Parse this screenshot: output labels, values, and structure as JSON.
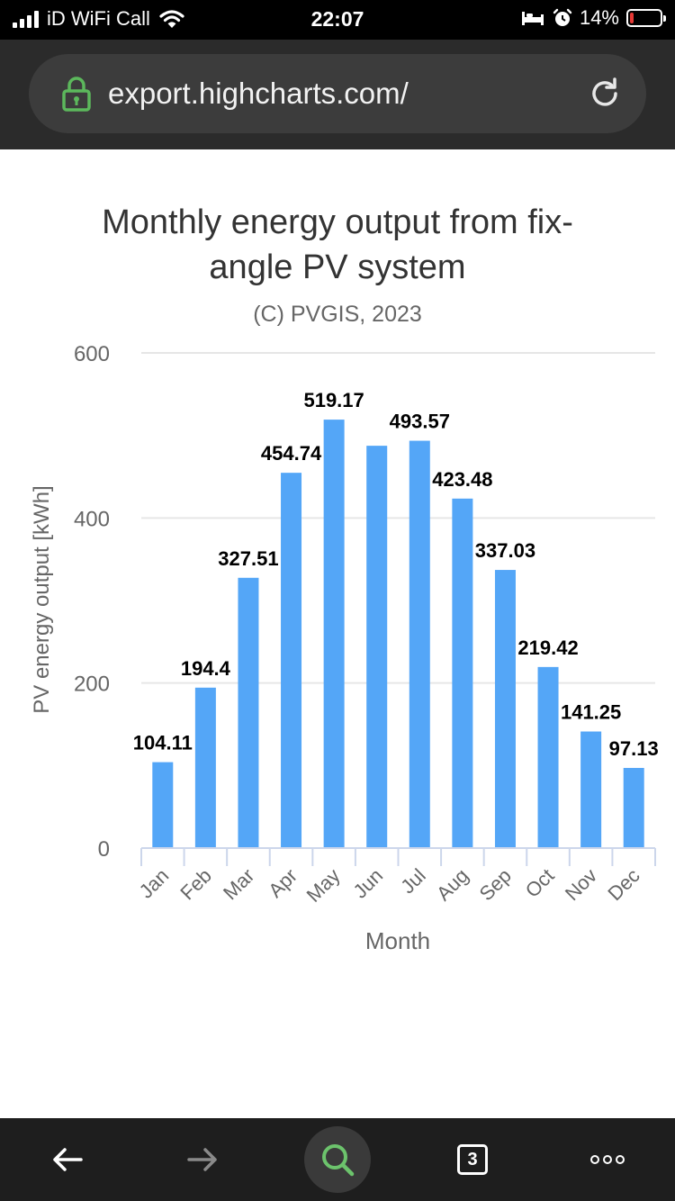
{
  "status_bar": {
    "carrier": "iD WiFi Call",
    "time": "22:07",
    "battery_percent": "14%",
    "battery_level": 0.14,
    "icons": [
      "signal-icon",
      "wifi-icon",
      "bed-icon",
      "alarm-icon",
      "battery-icon"
    ]
  },
  "browser": {
    "url": "export.highcharts.com/",
    "icons": [
      "lock-icon",
      "reload-icon"
    ]
  },
  "toolbar": {
    "tab_count": "3",
    "icons": [
      "back-arrow-icon",
      "forward-arrow-icon",
      "search-icon",
      "tabs-icon",
      "more-icon"
    ]
  },
  "colors": {
    "bar": "#54a6f7",
    "grid": "#e6e6e6",
    "search_accent": "#6cc36c",
    "lock_accent": "#5cb85c",
    "battery_low": "#e53935"
  },
  "chart_data": {
    "type": "bar",
    "title": "Monthly energy output from fix-angle PV system",
    "title_lines": [
      "Monthly energy output from fix-",
      "angle PV system"
    ],
    "subtitle": "(C) PVGIS, 2023",
    "xlabel": "Month",
    "ylabel": "PV energy output [kWh]",
    "ylim": [
      0,
      600
    ],
    "yticks": [
      0,
      200,
      400,
      600
    ],
    "grid": true,
    "legend": "none",
    "categories": [
      "Jan",
      "Feb",
      "Mar",
      "Apr",
      "May",
      "Jun",
      "Jul",
      "Aug",
      "Sep",
      "Oct",
      "Nov",
      "Dec"
    ],
    "values": [
      104.11,
      194.4,
      327.51,
      454.74,
      519.17,
      487.5,
      493.57,
      423.48,
      337.03,
      219.42,
      141.25,
      97.13
    ],
    "data_labels": [
      "104.11",
      "194.4",
      "327.51",
      "454.74",
      "519.17",
      "",
      "493.57",
      "423.48",
      "337.03",
      "219.42",
      "141.25",
      "97.13"
    ]
  }
}
